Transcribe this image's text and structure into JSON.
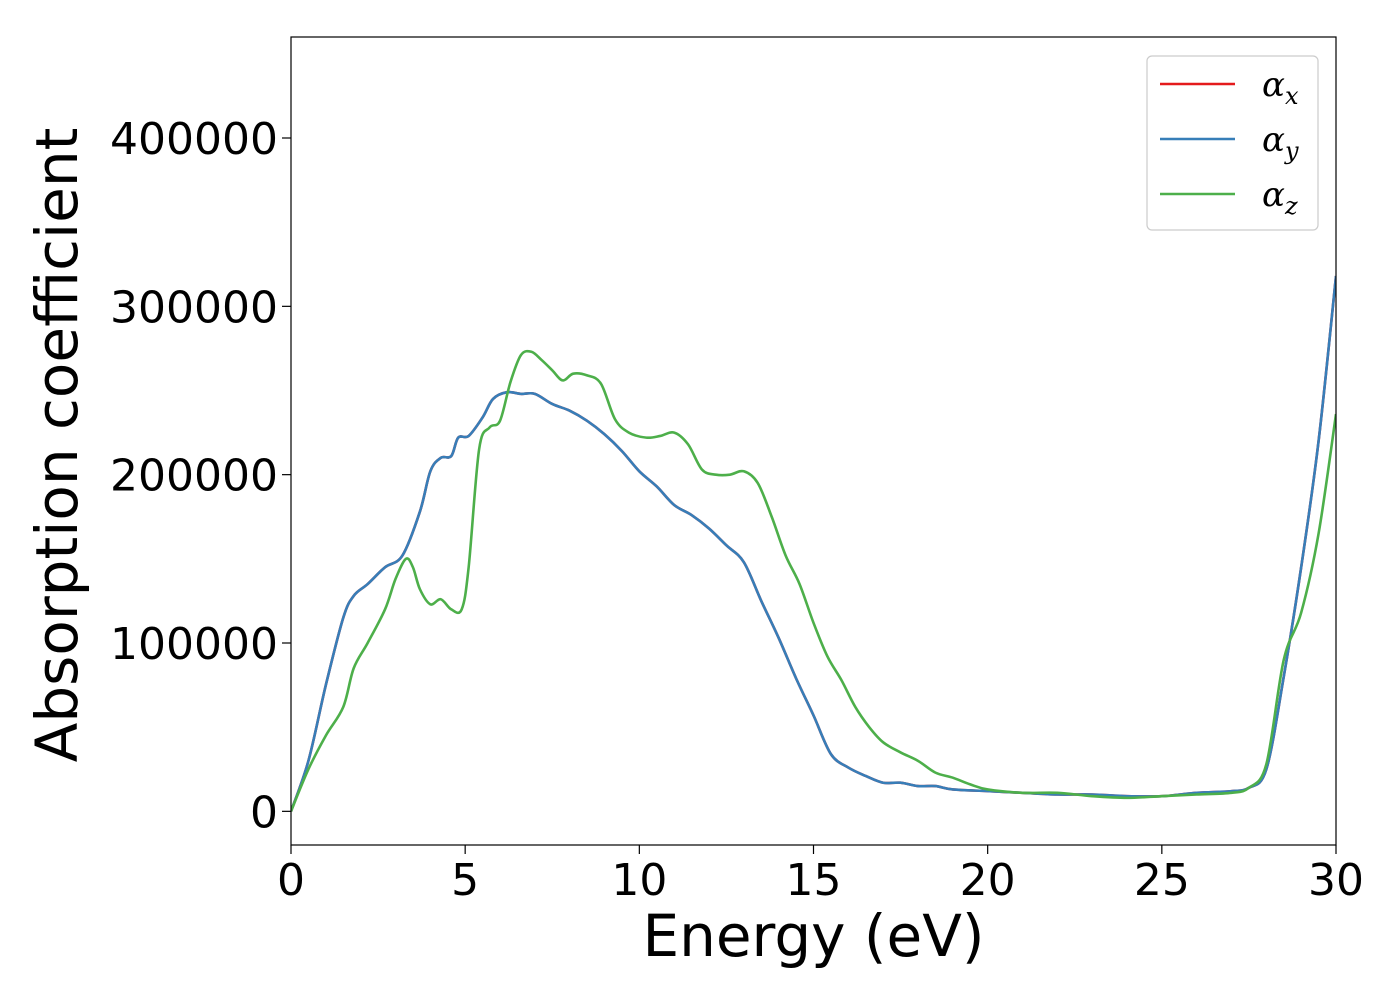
{
  "chart_data": {
    "type": "line",
    "xlabel": "Energy (eV)",
    "ylabel": "Absorption coefficient",
    "xlim": [
      0,
      30
    ],
    "ylim": [
      -20000,
      460000
    ],
    "xticks": [
      0,
      5,
      10,
      15,
      20,
      25,
      30
    ],
    "xtick_labels": [
      "0",
      "5",
      "10",
      "15",
      "20",
      "25",
      "30"
    ],
    "yticks": [
      0,
      100000,
      200000,
      300000,
      400000
    ],
    "ytick_labels": [
      "0",
      "100000",
      "200000",
      "300000",
      "400000"
    ],
    "grid": false,
    "legend_position": "top-right",
    "series": [
      {
        "name": "α",
        "subscript": "x",
        "color": "#e41a1c",
        "x": [
          0,
          0.5,
          1,
          1.5,
          1.8,
          2.2,
          2.7,
          3.2,
          3.7,
          4.0,
          4.3,
          4.6,
          4.8,
          5.1,
          5.5,
          5.8,
          6.2,
          6.6,
          7.0,
          7.5,
          8.0,
          8.5,
          9.0,
          9.5,
          10.0,
          10.5,
          11.0,
          11.5,
          12.0,
          12.5,
          13.0,
          13.5,
          14.0,
          14.5,
          15.0,
          15.5,
          16.0,
          16.5,
          17.0,
          17.5,
          18.0,
          18.5,
          19.0,
          20.0,
          21.0,
          22.0,
          23.0,
          24.0,
          25.0,
          26.0,
          27.0,
          27.5,
          28.0,
          28.5,
          29.0,
          29.5,
          30.0
        ],
        "y": [
          0,
          30000,
          75000,
          115000,
          128000,
          135000,
          145000,
          152000,
          178000,
          202000,
          210000,
          211000,
          222000,
          223000,
          234000,
          245000,
          249000,
          248000,
          248000,
          242000,
          238000,
          232000,
          224000,
          214000,
          202000,
          193000,
          182000,
          176000,
          168000,
          158000,
          148000,
          125000,
          103000,
          79000,
          57000,
          34000,
          26000,
          21000,
          17000,
          17000,
          15000,
          15000,
          13000,
          12000,
          11000,
          10000,
          10000,
          9000,
          9000,
          11000,
          12000,
          14000,
          25000,
          80000,
          145000,
          220000,
          318000
        ]
      },
      {
        "name": "α",
        "subscript": "y",
        "color": "#377eb8",
        "x": [
          0,
          0.5,
          1,
          1.5,
          1.8,
          2.2,
          2.7,
          3.2,
          3.7,
          4.0,
          4.3,
          4.6,
          4.8,
          5.1,
          5.5,
          5.8,
          6.2,
          6.6,
          7.0,
          7.5,
          8.0,
          8.5,
          9.0,
          9.5,
          10.0,
          10.5,
          11.0,
          11.5,
          12.0,
          12.5,
          13.0,
          13.5,
          14.0,
          14.5,
          15.0,
          15.5,
          16.0,
          16.5,
          17.0,
          17.5,
          18.0,
          18.5,
          19.0,
          20.0,
          21.0,
          22.0,
          23.0,
          24.0,
          25.0,
          26.0,
          27.0,
          27.5,
          28.0,
          28.5,
          29.0,
          29.5,
          30.0
        ],
        "y": [
          0,
          30000,
          75000,
          115000,
          128000,
          135000,
          145000,
          152000,
          178000,
          202000,
          210000,
          211000,
          222000,
          223000,
          234000,
          245000,
          249000,
          248000,
          248000,
          242000,
          238000,
          232000,
          224000,
          214000,
          202000,
          193000,
          182000,
          176000,
          168000,
          158000,
          148000,
          125000,
          103000,
          79000,
          57000,
          34000,
          26000,
          21000,
          17000,
          17000,
          15000,
          15000,
          13000,
          12000,
          11000,
          10000,
          10000,
          9000,
          9000,
          11000,
          12000,
          14000,
          25000,
          80000,
          145000,
          220000,
          318000
        ]
      },
      {
        "name": "α",
        "subscript": "z",
        "color": "#4daf4a",
        "x": [
          0,
          0.5,
          1,
          1.5,
          1.8,
          2.2,
          2.7,
          3.0,
          3.3,
          3.5,
          3.7,
          4.0,
          4.3,
          4.6,
          4.9,
          5.1,
          5.4,
          5.7,
          6.0,
          6.3,
          6.6,
          6.9,
          7.2,
          7.5,
          7.8,
          8.1,
          8.5,
          8.9,
          9.3,
          9.7,
          10.2,
          10.6,
          11.0,
          11.4,
          11.8,
          12.2,
          12.6,
          13.0,
          13.4,
          13.8,
          14.2,
          14.6,
          15.0,
          15.4,
          15.8,
          16.2,
          16.6,
          17.0,
          17.5,
          18.0,
          18.5,
          19.0,
          19.5,
          20.0,
          21.0,
          22.0,
          23.0,
          24.0,
          25.0,
          26.0,
          27.0,
          27.5,
          28.0,
          28.5,
          29.0,
          29.5,
          30.0
        ],
        "y": [
          0,
          25000,
          45000,
          62000,
          85000,
          100000,
          120000,
          138000,
          150000,
          145000,
          132000,
          123000,
          126000,
          120000,
          120000,
          145000,
          215000,
          228000,
          232000,
          255000,
          271000,
          273000,
          268000,
          262000,
          256000,
          260000,
          259000,
          254000,
          233000,
          225000,
          222000,
          223000,
          225000,
          218000,
          203000,
          200000,
          200000,
          202000,
          195000,
          175000,
          152000,
          135000,
          112000,
          92000,
          78000,
          62000,
          50000,
          41000,
          35000,
          30000,
          23000,
          20000,
          16000,
          13000,
          11000,
          11000,
          9000,
          8000,
          9000,
          10000,
          11000,
          14000,
          28000,
          90000,
          118000,
          165000,
          236000
        ]
      }
    ]
  }
}
